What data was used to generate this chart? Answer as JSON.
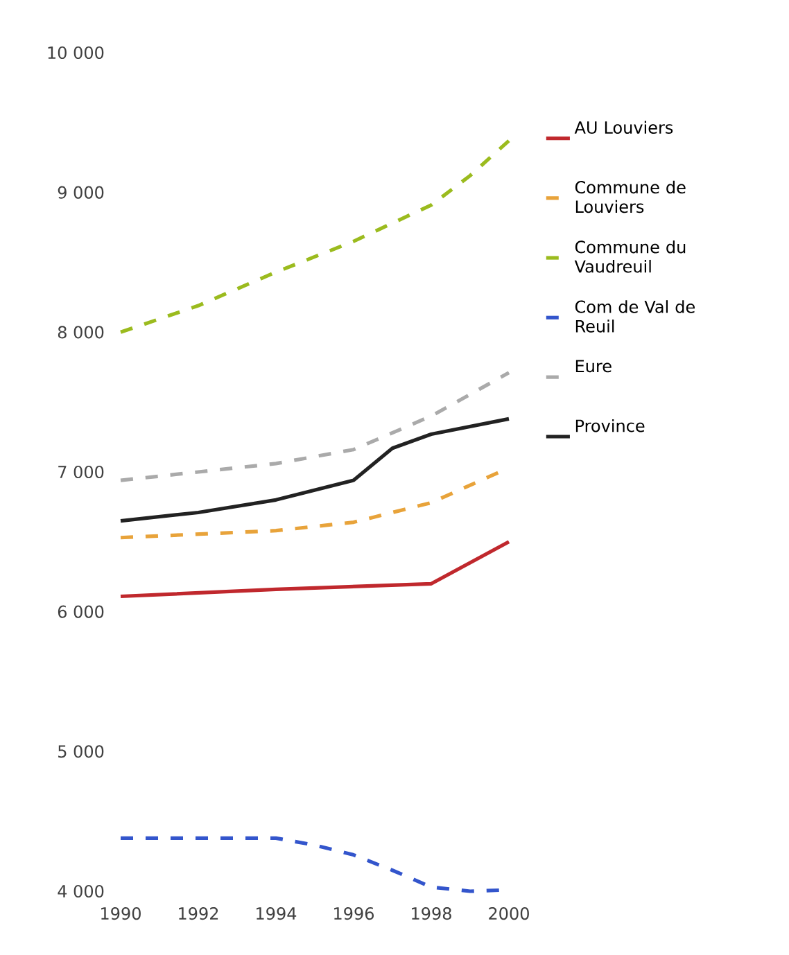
{
  "chart_data": {
    "type": "line",
    "legend": "right",
    "xlim": [
      1990,
      2000
    ],
    "xticks": [
      1990,
      1992,
      1994,
      1996,
      1998,
      2000
    ],
    "ylim": [
      4000,
      10000
    ],
    "yticks": [
      {
        "value": 4000,
        "label": "4 000"
      },
      {
        "value": 5000,
        "label": "5 000"
      },
      {
        "value": 6000,
        "label": "6 000"
      },
      {
        "value": 7000,
        "label": "7 000"
      },
      {
        "value": 8000,
        "label": "8 000"
      },
      {
        "value": 9000,
        "label": "9 000"
      },
      {
        "value": 10000,
        "label": "10 000"
      }
    ],
    "series": [
      {
        "name": "AU Louviers",
        "color": "#c0282d",
        "line_style": "solid",
        "x": [
          1990,
          1994,
          1998,
          2000
        ],
        "values": [
          6110,
          6160,
          6200,
          6500
        ]
      },
      {
        "name": "Commune de Louviers",
        "color": "#e8a33a",
        "line_style": "dashed",
        "x": [
          1990,
          1994,
          1996,
          1998,
          2000
        ],
        "values": [
          6530,
          6580,
          6640,
          6780,
          7030
        ]
      },
      {
        "name": "Commune du Vaudreuil",
        "color": "#9bbb1e",
        "line_style": "dashed",
        "x": [
          1990,
          1992,
          1994,
          1996,
          1998,
          1999,
          2000
        ],
        "values": [
          8000,
          8190,
          8430,
          8650,
          8910,
          9120,
          9370
        ]
      },
      {
        "name": "Com de Val de Reuil",
        "color": "#3355cc",
        "line_style": "dashed",
        "x": [
          1990,
          1994,
          1995,
          1996,
          1997,
          1998,
          1999,
          2000
        ],
        "values": [
          4380,
          4380,
          4330,
          4260,
          4150,
          4030,
          4000,
          4010
        ]
      },
      {
        "name": "Eure",
        "color": "#aaaaaa",
        "line_style": "dashed",
        "x": [
          1990,
          1992,
          1994,
          1996,
          1998,
          2000
        ],
        "values": [
          6940,
          7000,
          7060,
          7160,
          7400,
          7710
        ]
      },
      {
        "name": "Province",
        "color": "#222222",
        "line_style": "solid",
        "x": [
          1990,
          1992,
          1994,
          1996,
          1997,
          1998,
          2000
        ],
        "values": [
          6650,
          6710,
          6800,
          6940,
          7170,
          7270,
          7380
        ]
      }
    ]
  }
}
